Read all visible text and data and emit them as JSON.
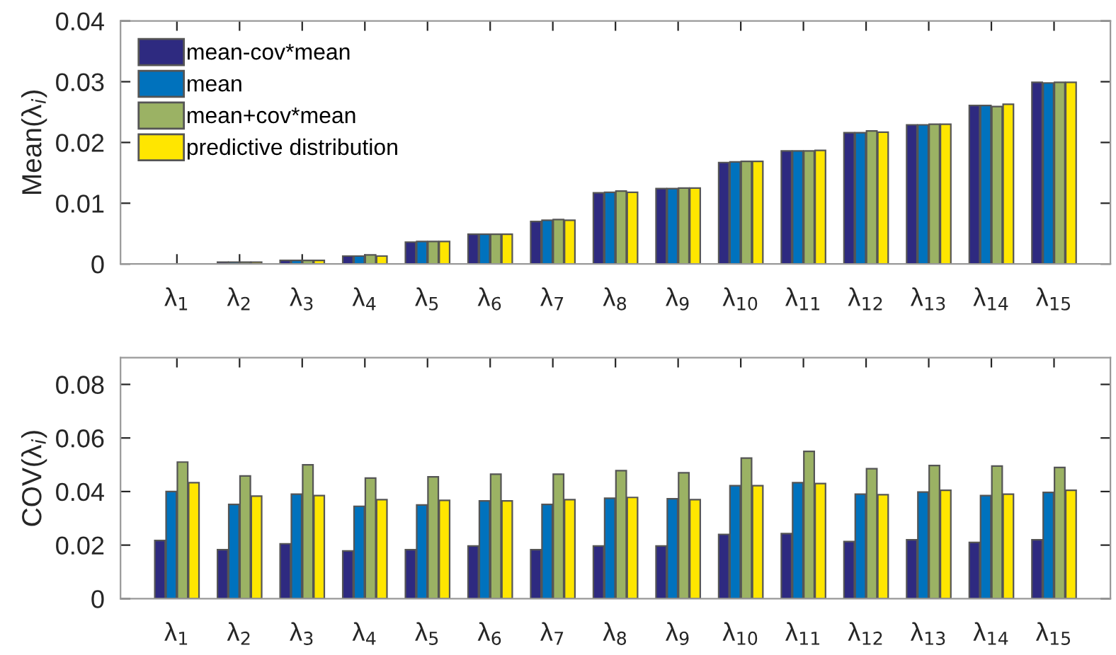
{
  "chart_data": [
    {
      "type": "bar",
      "ylabel": "Mean(λ$_{i}$)",
      "categories": [
        "λ$_{1}$",
        "λ$_{2}$",
        "λ$_{3}$",
        "λ$_{4}$",
        "λ$_{5}$",
        "λ$_{6}$",
        "λ$_{7}$",
        "λ$_{8}$",
        "λ$_{9}$",
        "λ$_{10}$",
        "λ$_{11}$",
        "λ$_{12}$",
        "λ$_{13}$",
        "λ$_{14}$",
        "λ$_{15}$"
      ],
      "series": [
        {
          "name": "mean-cov*mean",
          "color": "#2e2a80",
          "values": [
            null,
            0.0003,
            0.0006,
            0.0013,
            0.0036,
            0.0049,
            0.007,
            0.0117,
            0.0124,
            0.0167,
            0.0186,
            0.0216,
            0.0229,
            0.0261,
            0.0299
          ]
        },
        {
          "name": "mean",
          "color": "#0072bd",
          "values": [
            null,
            0.0003,
            0.0006,
            0.0013,
            0.0037,
            0.0049,
            0.0072,
            0.0118,
            0.0124,
            0.0168,
            0.0186,
            0.0216,
            0.0229,
            0.0261,
            0.0298
          ]
        },
        {
          "name": "mean+cov*mean",
          "color": "#9bb264",
          "values": [
            null,
            0.0003,
            0.0006,
            0.0015,
            0.0037,
            0.0049,
            0.0073,
            0.012,
            0.0125,
            0.0169,
            0.0186,
            0.0219,
            0.023,
            0.0259,
            0.0299
          ]
        },
        {
          "name": "predictive distribution",
          "color": "#ffe600",
          "values": [
            null,
            0.0003,
            0.0006,
            0.0013,
            0.0037,
            0.0049,
            0.0072,
            0.0118,
            0.0125,
            0.0169,
            0.0187,
            0.0217,
            0.023,
            0.0263,
            0.0299
          ]
        }
      ],
      "ylim": [
        0,
        0.04
      ],
      "yticks": [
        {
          "value": 0,
          "label": "0"
        },
        0.01,
        0.02,
        0.03,
        0.04
      ],
      "legend": "top left"
    },
    {
      "type": "bar",
      "ylabel": "COV(λ$_{i}$)",
      "categories": [
        "λ$_{1}$",
        "λ$_{2}$",
        "λ$_{3}$",
        "λ$_{4}$",
        "λ$_{5}$",
        "λ$_{6}$",
        "λ$_{7}$",
        "λ$_{8}$",
        "λ$_{9}$",
        "λ$_{10}$",
        "λ$_{11}$",
        "λ$_{12}$",
        "λ$_{13}$",
        "λ$_{14}$",
        "λ$_{15}$"
      ],
      "series": [
        {
          "color": "#2e2a80",
          "values": [
            0.0217,
            0.0183,
            0.0205,
            0.0178,
            0.0183,
            0.0197,
            0.0183,
            0.0197,
            0.0197,
            0.024,
            0.0243,
            0.0213,
            0.022,
            0.021,
            0.022
          ]
        },
        {
          "color": "#0072bd",
          "values": [
            0.04,
            0.0352,
            0.039,
            0.0345,
            0.035,
            0.0365,
            0.0352,
            0.0375,
            0.0373,
            0.0422,
            0.0433,
            0.039,
            0.0398,
            0.0385,
            0.0397
          ]
        },
        {
          "color": "#9bb264",
          "values": [
            0.051,
            0.0458,
            0.05,
            0.045,
            0.0455,
            0.0465,
            0.0465,
            0.0478,
            0.047,
            0.0525,
            0.055,
            0.0485,
            0.0497,
            0.0495,
            0.049
          ]
        },
        {
          "color": "#ffe600",
          "values": [
            0.0433,
            0.0383,
            0.0385,
            0.037,
            0.0367,
            0.0365,
            0.037,
            0.0378,
            0.037,
            0.0422,
            0.043,
            0.0388,
            0.0405,
            0.039,
            0.0405
          ]
        }
      ],
      "ylim": [
        0,
        0.09
      ],
      "yticks": [
        {
          "value": 0,
          "label": "0"
        },
        0.02,
        0.04,
        0.06,
        0.08
      ]
    }
  ]
}
